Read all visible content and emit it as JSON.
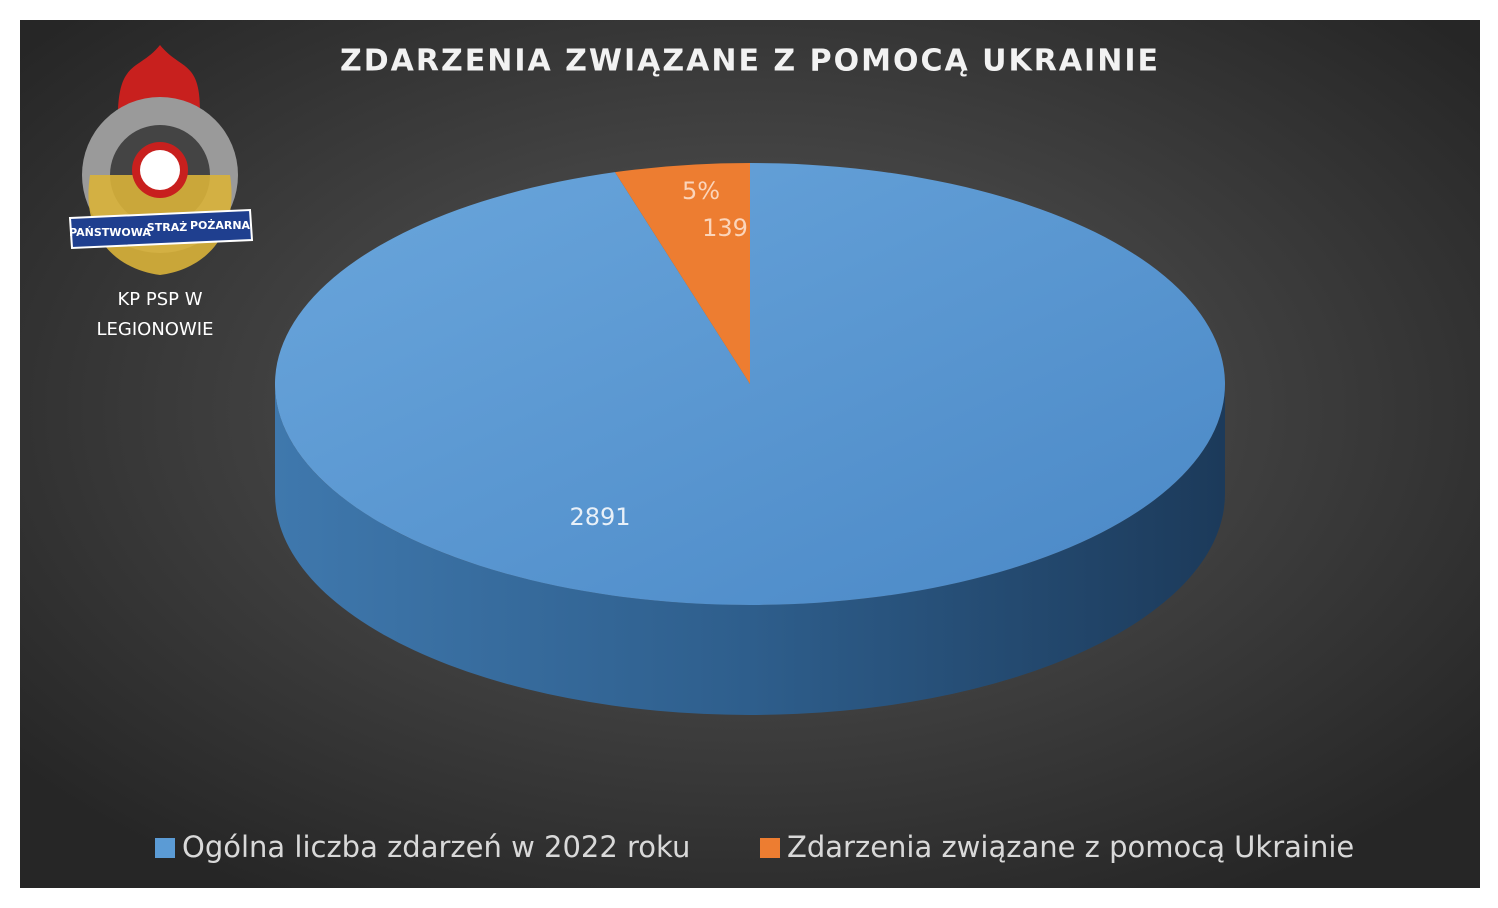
{
  "chart_data": {
    "type": "pie",
    "title": "ZDARZENIA ZWIĄZANE Z POMOCĄ UKRAINIE",
    "categories": [
      "Ogólna liczba zdarzeń w 2022 roku",
      "Zdarzenia związane z pomocą Ukrainie"
    ],
    "values": [
      2891,
      139
    ],
    "percent_labels": [
      null,
      "5%"
    ],
    "colors": [
      "#5b9bd5",
      "#ed7d31"
    ],
    "legend": "bottom"
  },
  "logo": {
    "banner": [
      "PAŃSTWOWA",
      "STRAŻ",
      "POŻARNA"
    ],
    "caption": [
      "KP PSP W",
      "LEGIONOWIE"
    ]
  }
}
